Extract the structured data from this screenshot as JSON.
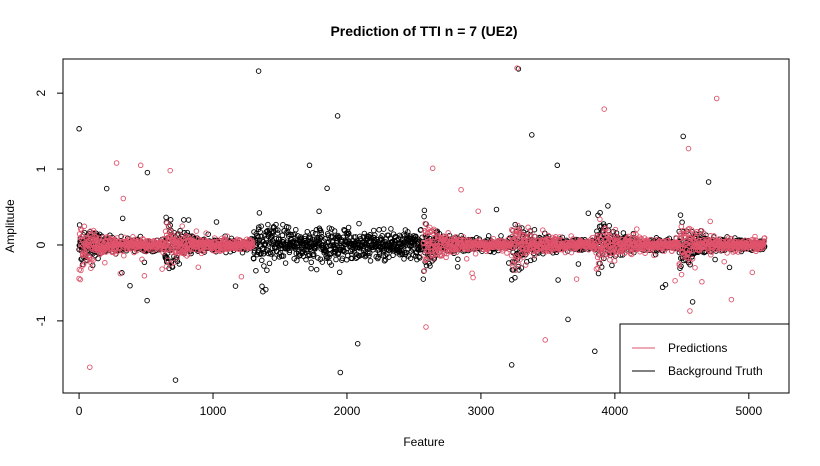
{
  "chart_data": {
    "type": "scatter",
    "title": "Prediction of TTI n = 7  (UE2)",
    "xlabel": "Feature",
    "ylabel": "Amplitude",
    "xlim": [
      -120,
      5300
    ],
    "ylim": [
      -1.95,
      2.45
    ],
    "x_ticks": [
      0,
      1000,
      2000,
      3000,
      4000,
      5000
    ],
    "y_ticks": [
      -1,
      0,
      1,
      2
    ],
    "grid": false,
    "legend_position": "bottom-right",
    "n_points_per_series": 5120,
    "series": [
      {
        "name": "Background Truth",
        "color": "#000000",
        "marker": "open-circle",
        "notable_points": [
          [
            0,
            1.53
          ],
          [
            1340,
            2.29
          ],
          [
            1930,
            1.7
          ],
          [
            1720,
            1.05
          ],
          [
            3280,
            2.32
          ],
          [
            3380,
            1.45
          ],
          [
            3570,
            1.05
          ],
          [
            4510,
            1.43
          ],
          [
            720,
            -1.78
          ],
          [
            1950,
            -1.68
          ],
          [
            2080,
            -1.3
          ],
          [
            3230,
            -1.58
          ],
          [
            3850,
            -1.4
          ],
          [
            3650,
            -0.98
          ],
          [
            4580,
            -0.75
          ]
        ]
      },
      {
        "name": "Predictions",
        "color": "#DF536B",
        "marker": "open-circle",
        "notable_points": [
          [
            3270,
            2.33
          ],
          [
            4760,
            1.93
          ],
          [
            3920,
            1.79
          ],
          [
            4550,
            1.27
          ],
          [
            280,
            1.08
          ],
          [
            460,
            1.05
          ],
          [
            680,
            0.98
          ],
          [
            2640,
            1.01
          ],
          [
            80,
            -1.61
          ],
          [
            2590,
            -1.08
          ],
          [
            3480,
            -1.25
          ],
          [
            4560,
            -0.87
          ],
          [
            4870,
            -0.72
          ]
        ]
      }
    ],
    "legend": [
      {
        "label": "Predictions",
        "color": "#DF536B"
      },
      {
        "label": "Background Truth",
        "color": "#000000"
      }
    ]
  }
}
